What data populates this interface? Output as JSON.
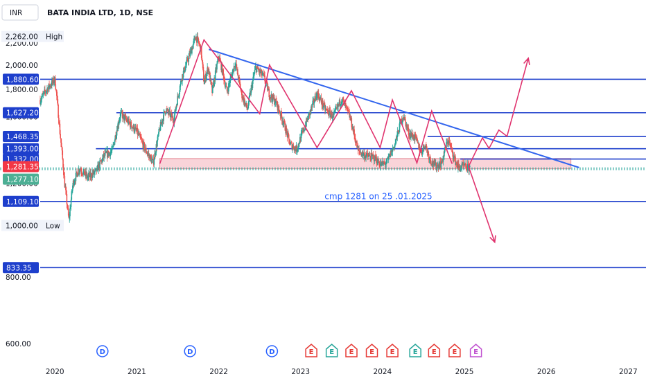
{
  "header": {
    "currency": "INR",
    "title": "BATA INDIA LTD, 1D, NSE"
  },
  "chart_data": {
    "type": "line",
    "title": "BATA INDIA LTD, 1D, NSE",
    "currency": "INR",
    "xlabel": "",
    "ylabel": "",
    "ylim": [
      550,
      2330
    ],
    "xlim": [
      2019.82,
      2027.2
    ],
    "grid": false,
    "y_ticks": [
      "2,200.00",
      "2,000.00",
      "1,800.00",
      "1,600.00",
      "1,400.00",
      "1,200.00",
      "1,000.00",
      "800.00",
      "600.00"
    ],
    "y_tick_values": [
      2200,
      2000,
      1800,
      1600,
      1400,
      1200,
      1000,
      800,
      600
    ],
    "x_ticks": [
      "2020",
      "2021",
      "2022",
      "2023",
      "2024",
      "2025",
      "2026",
      "2027"
    ],
    "x_tick_values": [
      2020,
      2021,
      2022,
      2023,
      2024,
      2025,
      2026,
      2027
    ],
    "high": {
      "value": "2,262.00",
      "label": "High",
      "num": 2262
    },
    "low": {
      "value": "1,000.00",
      "label": "Low",
      "num": 1000
    },
    "last_price": {
      "value": "1,281.35",
      "num": 1281.35,
      "color": "#f23645"
    },
    "prev_close": {
      "value": "1,277.10",
      "num": 1277.1,
      "color": "#4caf94"
    },
    "levels": [
      {
        "value": "1,880.60",
        "num": 1880.6,
        "x_start": 2019.82
      },
      {
        "value": "1,627.20",
        "num": 1627.2,
        "x_start": 2020.75
      },
      {
        "value": "1,468.35",
        "num": 1468.35,
        "x_start": 2024.55
      },
      {
        "value": "1,393.00",
        "num": 1393.0,
        "x_start": 2020.5
      },
      {
        "value": "1,332.00",
        "num": 1332.0,
        "x_start": 2024.95
      },
      {
        "value": "1,109.10",
        "num": 1109.1,
        "x_start": 2019.82
      },
      {
        "value": "833.35",
        "num": 833.35,
        "x_start": 2019.82
      }
    ],
    "price_series": {
      "x": [
        2019.82,
        2019.9,
        2020.0,
        2020.06,
        2020.12,
        2020.17,
        2020.22,
        2020.3,
        2020.4,
        2020.5,
        2020.6,
        2020.7,
        2020.8,
        2020.9,
        2021.0,
        2021.1,
        2021.2,
        2021.28,
        2021.35,
        2021.45,
        2021.55,
        2021.65,
        2021.72,
        2021.78,
        2021.82,
        2021.87,
        2021.92,
        2022.0,
        2022.1,
        2022.2,
        2022.28,
        2022.35,
        2022.45,
        2022.55,
        2022.62,
        2022.7,
        2022.78,
        2022.87,
        2022.95,
        2023.05,
        2023.12,
        2023.2,
        2023.3,
        2023.4,
        2023.5,
        2023.6,
        2023.7,
        2023.8,
        2023.9,
        2023.98,
        2024.05,
        2024.15,
        2024.25,
        2024.32,
        2024.4,
        2024.47,
        2024.52,
        2024.58,
        2024.65,
        2024.72,
        2024.8,
        2024.88,
        2024.93,
        2024.98,
        2025.02,
        2025.07
      ],
      "y": [
        1720,
        1800,
        1880,
        1500,
        1190,
        1020,
        1200,
        1280,
        1230,
        1260,
        1350,
        1380,
        1620,
        1560,
        1500,
        1390,
        1310,
        1520,
        1650,
        1580,
        1900,
        2100,
        2262,
        2150,
        1850,
        1980,
        1780,
        2080,
        1780,
        2020,
        1760,
        1650,
        1980,
        1900,
        1760,
        1700,
        1580,
        1420,
        1390,
        1530,
        1640,
        1770,
        1650,
        1600,
        1730,
        1600,
        1380,
        1350,
        1340,
        1300,
        1310,
        1420,
        1610,
        1490,
        1460,
        1370,
        1420,
        1330,
        1290,
        1310,
        1450,
        1330,
        1281.35,
        1290,
        1285,
        1281.35
      ]
    },
    "trendline": {
      "from": [
        2021.88,
        2140
      ],
      "to": [
        2026.4,
        1284
      ]
    },
    "zigzag": [
      [
        2021.28,
        1305
      ],
      [
        2021.82,
        2230
      ],
      [
        2022.5,
        1620
      ],
      [
        2022.62,
        2000
      ],
      [
        2023.2,
        1400
      ],
      [
        2023.62,
        1790
      ],
      [
        2023.97,
        1400
      ],
      [
        2024.12,
        1720
      ],
      [
        2024.42,
        1310
      ],
      [
        2024.6,
        1640
      ],
      [
        2024.85,
        1305
      ]
    ],
    "support_zone": {
      "from": [
        2021.28,
        1277
      ],
      "to": [
        2026.3,
        1335
      ]
    },
    "annotation": {
      "text": "cmp 1281 on 25 .01.2025",
      "x": 2023.95,
      "y": 1120
    },
    "projection_up": [
      [
        2025.05,
        1290
      ],
      [
        2025.22,
        1460
      ],
      [
        2025.3,
        1395
      ],
      [
        2025.42,
        1510
      ],
      [
        2025.52,
        1470
      ],
      [
        2025.78,
        2060
      ]
    ],
    "projection_down": [
      [
        2025.05,
        1290
      ],
      [
        2025.37,
        930
      ]
    ],
    "events": [
      {
        "label": "D",
        "x": 2020.58,
        "kind": "dividend"
      },
      {
        "label": "D",
        "x": 2021.65,
        "kind": "dividend"
      },
      {
        "label": "D",
        "x": 2022.65,
        "kind": "dividend"
      },
      {
        "label": "E",
        "x": 2023.13,
        "kind": "earnings-miss"
      },
      {
        "label": "E",
        "x": 2023.38,
        "kind": "earnings-beat"
      },
      {
        "label": "E",
        "x": 2023.62,
        "kind": "earnings-miss"
      },
      {
        "label": "E",
        "x": 2023.87,
        "kind": "earnings-miss"
      },
      {
        "label": "E",
        "x": 2024.12,
        "kind": "earnings-miss"
      },
      {
        "label": "E",
        "x": 2024.4,
        "kind": "earnings-beat"
      },
      {
        "label": "E",
        "x": 2024.63,
        "kind": "earnings-miss"
      },
      {
        "label": "E",
        "x": 2024.88,
        "kind": "earnings-miss"
      },
      {
        "label": "E",
        "x": 2025.14,
        "kind": "earnings-upcoming"
      }
    ],
    "colors": {
      "level": "#1e3fcc",
      "level_label": "#1e3fcc",
      "trend": "#3366ee",
      "zigzag": "#e0336e",
      "zone_fill": "#f7c6cc",
      "up": "#26a69a",
      "down": "#ef5350",
      "dividend": "#2962ff",
      "earnings_miss": "#e53935",
      "earnings_beat": "#26a69a",
      "earnings_upcoming": "#c050d0"
    }
  }
}
